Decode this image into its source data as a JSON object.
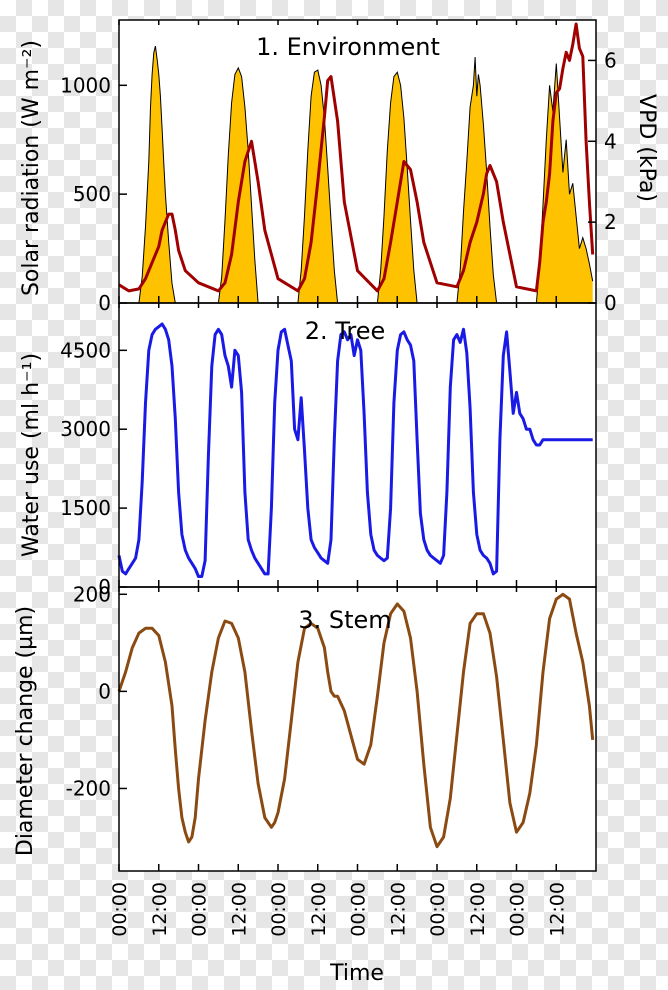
{
  "chart_data": [
    {
      "type": "area",
      "title": "1. Environment",
      "ylabel": "Solar radiation (W m⁻²)",
      "ylim": [
        0,
        1300
      ],
      "yticks": [
        "0",
        "500",
        "1000"
      ],
      "y2label": "VPD (kPa)",
      "y2lim": [
        0,
        7
      ],
      "y2ticks": [
        "0",
        "2",
        "4",
        "6"
      ],
      "colors": {
        "radiation_fill": "#FFC200",
        "radiation_line": "#000000",
        "vpd": "#A00000"
      },
      "series": [
        {
          "axis": "left",
          "x": [
            0,
            6,
            7,
            8,
            9,
            9.5,
            10,
            10.5,
            11,
            11.5,
            12,
            12.5,
            13,
            13.5,
            14,
            15,
            16,
            17,
            18,
            30,
            31,
            32,
            33,
            34,
            35,
            36,
            37,
            38,
            39,
            40,
            41,
            42,
            54,
            55,
            56,
            57,
            58,
            59,
            60,
            61,
            62,
            63,
            64,
            65,
            66,
            78,
            79,
            80,
            81,
            82,
            83,
            84,
            85,
            86,
            87,
            88,
            89,
            90,
            102,
            103,
            104,
            105,
            106,
            107,
            107.5,
            108,
            108.5,
            109,
            110,
            111,
            112,
            113,
            114,
            126,
            127,
            128,
            129,
            130,
            131,
            132,
            133,
            134,
            135,
            136,
            137,
            138,
            139,
            140,
            141,
            142,
            143
          ],
          "values": [
            0,
            0,
            120,
            350,
            650,
            900,
            1050,
            1150,
            1180,
            1120,
            1050,
            950,
            800,
            650,
            500,
            280,
            90,
            0,
            0,
            0,
            120,
            380,
            680,
            920,
            1050,
            1080,
            1040,
            900,
            700,
            450,
            200,
            0,
            0,
            150,
            400,
            700,
            950,
            1060,
            1070,
            1000,
            850,
            620,
            380,
            150,
            0,
            0,
            150,
            400,
            700,
            920,
            1040,
            1060,
            1000,
            850,
            620,
            380,
            150,
            0,
            0,
            150,
            420,
            650,
            900,
            1000,
            1130,
            950,
            1050,
            1000,
            820,
            600,
            350,
            130,
            0,
            0,
            180,
            450,
            750,
            1000,
            880,
            1100,
            850,
            600,
            750,
            500,
            550,
            400,
            250,
            300,
            250,
            180,
            100
          ]
        },
        {
          "axis": "right",
          "x": [
            0,
            3,
            6,
            8,
            10,
            12,
            13,
            14,
            15,
            16,
            17,
            18,
            20,
            24,
            30,
            32,
            34,
            36,
            38,
            40,
            42,
            44,
            48,
            54,
            56,
            58,
            60,
            62,
            63,
            64,
            66,
            68,
            72,
            78,
            80,
            82,
            84,
            86,
            88,
            90,
            92,
            96,
            102,
            104,
            106,
            108,
            110,
            111,
            112,
            114,
            116,
            120,
            126,
            127,
            128,
            129,
            130,
            131,
            132,
            133,
            134,
            135,
            136,
            137,
            138,
            139,
            140,
            141,
            142,
            143
          ],
          "values": [
            0.45,
            0.3,
            0.35,
            0.6,
            1.0,
            1.4,
            1.8,
            2.0,
            2.2,
            2.2,
            1.8,
            1.3,
            0.8,
            0.5,
            0.3,
            0.5,
            1.2,
            2.5,
            3.5,
            4.0,
            3.0,
            1.8,
            0.6,
            0.3,
            0.6,
            1.5,
            3.0,
            4.6,
            5.5,
            5.6,
            4.5,
            2.5,
            0.8,
            0.3,
            0.6,
            1.5,
            2.5,
            3.5,
            3.3,
            2.5,
            1.5,
            0.5,
            0.4,
            0.8,
            1.5,
            2.0,
            2.7,
            3.2,
            3.4,
            3.0,
            2.0,
            0.4,
            0.3,
            1.0,
            2.0,
            2.5,
            3.2,
            4.5,
            5.2,
            5.3,
            5.8,
            6.2,
            6.0,
            6.4,
            6.9,
            6.3,
            6.1,
            4.0,
            2.5,
            1.2
          ]
        }
      ]
    },
    {
      "type": "line",
      "title": "2. Tree",
      "ylabel": "Water use (ml h⁻¹)",
      "ylim": [
        0,
        5400
      ],
      "yticks": [
        "0",
        "1500",
        "3000",
        "4500"
      ],
      "colors": {
        "line": "#1A1AE6"
      },
      "series": [
        {
          "x": [
            0,
            1,
            2,
            3,
            4,
            5,
            6,
            7,
            8,
            9,
            10,
            11,
            12,
            13,
            14,
            15,
            16,
            17,
            18,
            19,
            20,
            21,
            22,
            23,
            24,
            25,
            26,
            27,
            28,
            29,
            30,
            31,
            32,
            33,
            34,
            35,
            36,
            37,
            38,
            39,
            40,
            41,
            42,
            43,
            44,
            45,
            46,
            47,
            48,
            49,
            50,
            51,
            52,
            53,
            54,
            55,
            56,
            57,
            58,
            59,
            60,
            61,
            62,
            63,
            64,
            65,
            66,
            67,
            68,
            69,
            70,
            71,
            72,
            73,
            74,
            75,
            76,
            77,
            78,
            79,
            80,
            81,
            82,
            83,
            84,
            85,
            86,
            87,
            88,
            89,
            90,
            91,
            92,
            93,
            94,
            95,
            96,
            97,
            98,
            99,
            100,
            101,
            102,
            103,
            104,
            105,
            106,
            107,
            108,
            109,
            110,
            111,
            112,
            113,
            114,
            115,
            116,
            117,
            118,
            119,
            120,
            121,
            122,
            123,
            124,
            125,
            126,
            127,
            128,
            129,
            130,
            131,
            132,
            133,
            134,
            135,
            136,
            137,
            138,
            139,
            140,
            141,
            142,
            143
          ],
          "values": [
            600,
            300,
            250,
            350,
            450,
            550,
            900,
            2000,
            3500,
            4500,
            4800,
            4900,
            4950,
            5000,
            4900,
            4700,
            4200,
            3200,
            1800,
            1000,
            700,
            550,
            450,
            350,
            200,
            200,
            500,
            2500,
            4200,
            4800,
            4900,
            4800,
            4400,
            4200,
            3800,
            4500,
            4400,
            3700,
            1800,
            900,
            700,
            550,
            450,
            350,
            250,
            250,
            1500,
            3500,
            4500,
            4850,
            4900,
            4600,
            4300,
            3000,
            2800,
            3600,
            2600,
            1500,
            900,
            750,
            650,
            550,
            500,
            450,
            900,
            2800,
            4300,
            4800,
            4850,
            4700,
            4800,
            4400,
            4700,
            4500,
            3300,
            1800,
            1000,
            700,
            600,
            550,
            500,
            550,
            1500,
            3500,
            4500,
            4800,
            4850,
            4700,
            4600,
            4300,
            2800,
            1400,
            900,
            700,
            600,
            550,
            500,
            450,
            600,
            1800,
            3800,
            4700,
            4800,
            4650,
            4900,
            4450,
            3400,
            1800,
            1000,
            700,
            600,
            550,
            450,
            250,
            300,
            2800,
            4400,
            4850,
            4100,
            3300,
            3700,
            3300,
            3200,
            3000,
            3000,
            2800,
            2700,
            2700,
            2800,
            2800,
            2800,
            2800,
            2800,
            2800,
            2800,
            2800,
            2800,
            2800,
            2800,
            2800,
            2800,
            2800,
            2800,
            2800
          ]
        }
      ]
    },
    {
      "type": "line",
      "title": "3. Stem",
      "ylabel": "Diameter change (µm)",
      "ylim": [
        -370,
        215
      ],
      "yticks": [
        "-200",
        "0",
        "200"
      ],
      "colors": {
        "line": "#8B4A12"
      },
      "xlabel": "Time",
      "xticks": [
        "00:00",
        "12:00",
        "00:00",
        "12:00",
        "00:00",
        "12:00",
        "00:00",
        "12:00",
        "00:00",
        "12:00",
        "00:00",
        "12:00"
      ],
      "series": [
        {
          "x": [
            0,
            2,
            4,
            6,
            8,
            10,
            12,
            14,
            16,
            17,
            18,
            19,
            20,
            21,
            22,
            23,
            24,
            26,
            28,
            30,
            32,
            34,
            36,
            38,
            40,
            42,
            44,
            46,
            47,
            48,
            50,
            52,
            54,
            56,
            58,
            60,
            62,
            63,
            64,
            65,
            66,
            68,
            70,
            72,
            74,
            76,
            78,
            80,
            82,
            84,
            86,
            88,
            90,
            92,
            94,
            96,
            98,
            100,
            102,
            104,
            106,
            108,
            110,
            112,
            114,
            116,
            118,
            120,
            122,
            124,
            126,
            128,
            130,
            132,
            134,
            136,
            138,
            140,
            142,
            143
          ],
          "values": [
            0,
            40,
            90,
            120,
            130,
            130,
            115,
            60,
            -30,
            -120,
            -200,
            -260,
            -290,
            -310,
            -300,
            -260,
            -180,
            -60,
            40,
            110,
            145,
            140,
            110,
            40,
            -80,
            -190,
            -260,
            -280,
            -270,
            -250,
            -180,
            -60,
            60,
            130,
            140,
            130,
            90,
            40,
            0,
            -10,
            -10,
            -40,
            -90,
            -140,
            -150,
            -110,
            -10,
            100,
            160,
            180,
            165,
            110,
            0,
            -150,
            -280,
            -320,
            -300,
            -220,
            -90,
            40,
            140,
            160,
            160,
            120,
            30,
            -100,
            -230,
            -290,
            -270,
            -210,
            -110,
            40,
            150,
            190,
            200,
            190,
            120,
            60,
            -30,
            -100
          ]
        }
      ]
    }
  ]
}
